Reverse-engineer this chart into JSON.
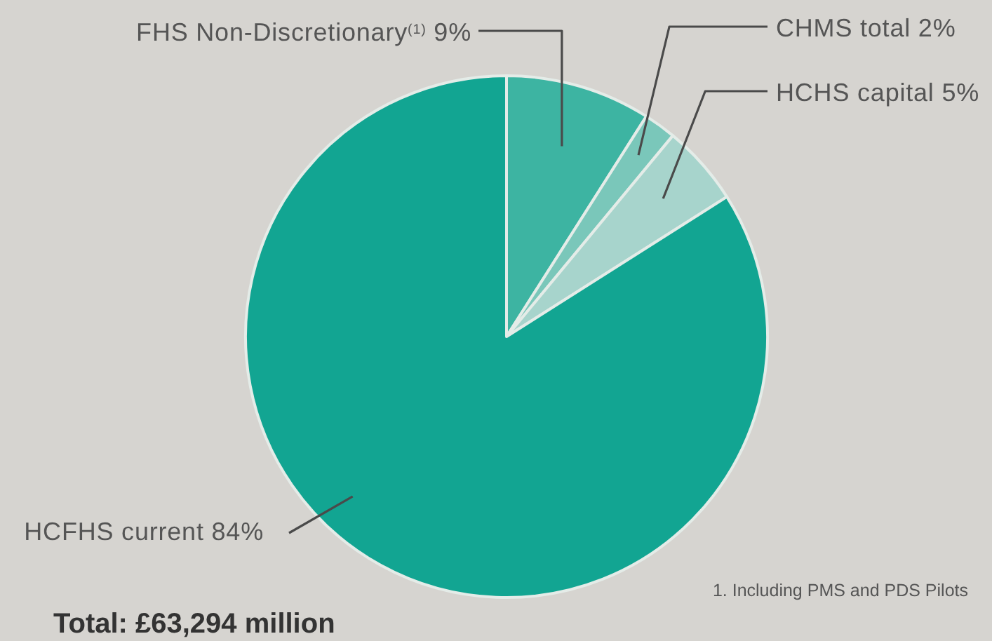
{
  "chart_data": {
    "type": "pie",
    "categories": [
      "FHS Non-Discretionary$^{(1)}$",
      "CHMS total",
      "HCHS capital",
      "HCFHS current"
    ],
    "values": [
      9,
      2,
      5,
      84
    ],
    "value_labels": [
      "9%",
      "2%",
      "5%",
      "84%"
    ],
    "colors": [
      "#3db4a2",
      "#7ac7ba",
      "#a7d4cc",
      "#12a592"
    ],
    "annotations": [
      "1. Including PMS and PDS Pilots",
      "Total: £63,294 million"
    ]
  }
}
